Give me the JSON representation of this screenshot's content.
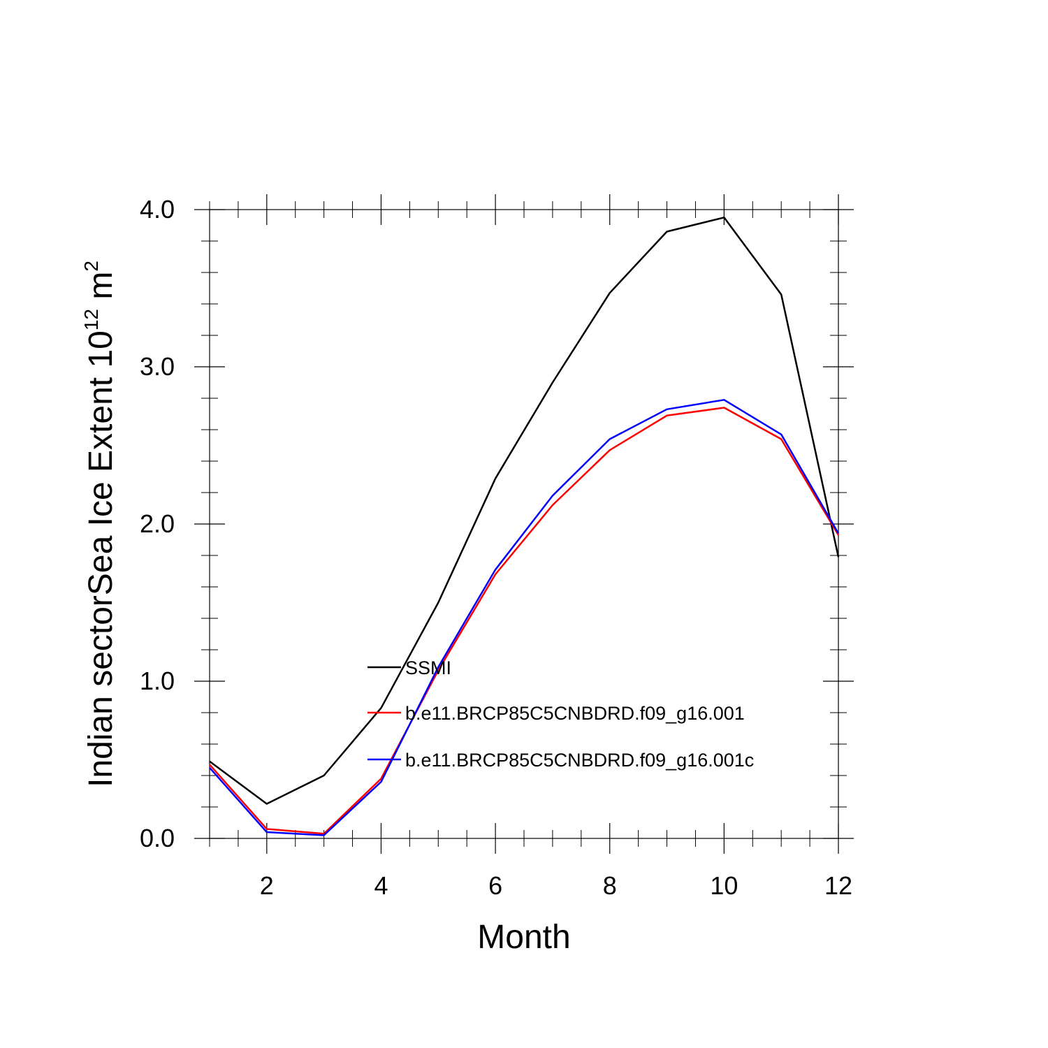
{
  "chart_data": {
    "type": "line",
    "title": "",
    "xlabel": "Month",
    "ylabel": {
      "prefix": "Indian sectorSea Ice Extent 10",
      "superscript_1": "12",
      "middle": " m",
      "superscript_2": "2"
    },
    "xlim": [
      1,
      12
    ],
    "ylim": [
      0,
      4
    ],
    "x_ticks": [
      2,
      4,
      6,
      8,
      10,
      12
    ],
    "x_tick_labels": [
      "2",
      "4",
      "6",
      "8",
      "10",
      "12"
    ],
    "y_ticks": [
      0,
      1,
      2,
      3,
      4
    ],
    "y_tick_labels": [
      "0.0",
      "1.0",
      "2.0",
      "3.0",
      "4.0"
    ],
    "grid": false,
    "legend_position": "center",
    "x": [
      1,
      2,
      3,
      4,
      5,
      6,
      7,
      8,
      9,
      10,
      11,
      12
    ],
    "series": [
      {
        "name": "SSMI",
        "color": "#000000",
        "values": [
          0.49,
          0.22,
          0.4,
          0.83,
          1.5,
          2.29,
          2.9,
          3.47,
          3.86,
          3.95,
          3.46,
          1.79
        ]
      },
      {
        "name": "b.e11.BRCP85C5CNBDRD.f09_g16.001",
        "color": "#ff0000",
        "values": [
          0.47,
          0.06,
          0.03,
          0.38,
          1.07,
          1.68,
          2.12,
          2.47,
          2.69,
          2.74,
          2.54,
          1.93
        ]
      },
      {
        "name": "b.e11.BRCP85C5CNBDRD.f09_g16.001c",
        "color": "#0000ff",
        "values": [
          0.45,
          0.04,
          0.02,
          0.36,
          1.09,
          1.71,
          2.18,
          2.54,
          2.73,
          2.79,
          2.57,
          1.94
        ]
      }
    ]
  }
}
